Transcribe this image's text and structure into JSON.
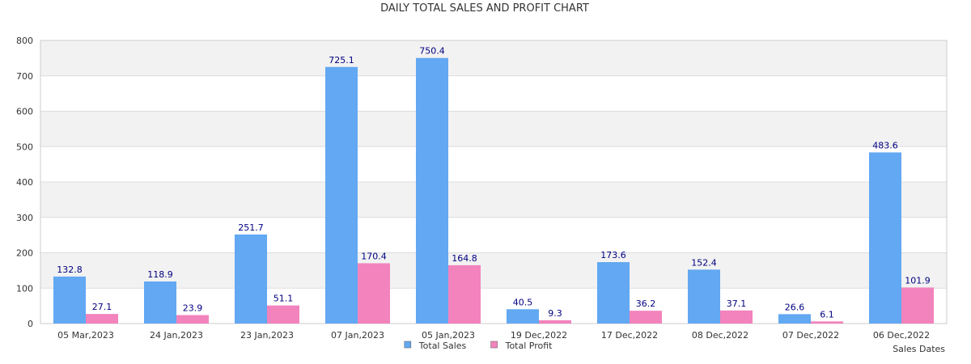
{
  "chart_data": {
    "type": "bar",
    "title": "DAILY TOTAL SALES AND PROFIT CHART",
    "xlabel": "Sales Dates",
    "ylabel": "",
    "ylim": [
      0,
      800
    ],
    "yticks": [
      0,
      100,
      200,
      300,
      400,
      500,
      600,
      700,
      800
    ],
    "grid": true,
    "legend_position": "bottom-center",
    "categories": [
      "05 Mar,2023",
      "24 Jan,2023",
      "23 Jan,2023",
      "07 Jan,2023",
      "05 Jan,2023",
      "19 Dec,2022",
      "17 Dec,2022",
      "08 Dec,2022",
      "07 Dec,2022",
      "06 Dec,2022"
    ],
    "series": [
      {
        "name": "Total Sales",
        "color": "#62a8f2",
        "values": [
          132.8,
          118.9,
          251.7,
          725.1,
          750.4,
          40.5,
          173.6,
          152.4,
          26.6,
          483.6
        ],
        "labels": [
          "132.8",
          "118.9",
          "251.7",
          "725.1",
          "750.4",
          "40.5",
          "173.6",
          "152.4",
          "26.6",
          "483.6"
        ]
      },
      {
        "name": "Total Profit",
        "color": "#f283bd",
        "values": [
          27.1,
          23.9,
          51.1,
          170.4,
          164.8,
          9.3,
          36.2,
          37.1,
          6.1,
          101.9
        ],
        "labels": [
          "27.1",
          "23.9",
          "51.1",
          "170.4",
          "164.8",
          "9.3",
          "36.2",
          "37.1",
          "6.1",
          "101.9"
        ]
      }
    ],
    "colors": {
      "band": "#f2f2f2",
      "grid": "#dddddd",
      "axis": "#cccccc",
      "data_label": "#000080",
      "text": "#333333"
    }
  }
}
